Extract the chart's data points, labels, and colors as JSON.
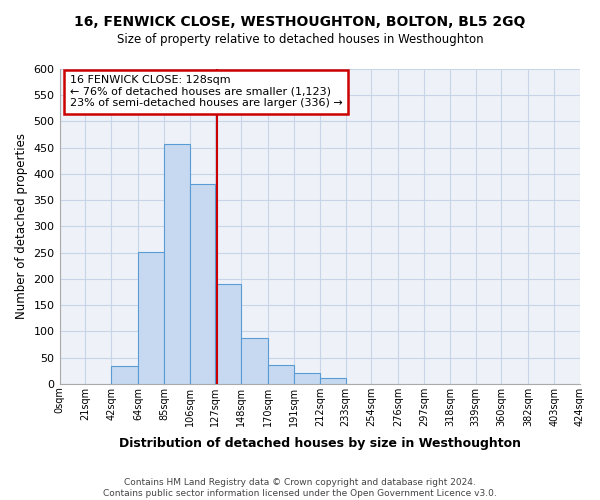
{
  "title": "16, FENWICK CLOSE, WESTHOUGHTON, BOLTON, BL5 2GQ",
  "subtitle": "Size of property relative to detached houses in Westhoughton",
  "xlabel": "Distribution of detached houses by size in Westhoughton",
  "ylabel": "Number of detached properties",
  "bar_edges": [
    0,
    21,
    42,
    64,
    85,
    106,
    127,
    148,
    170,
    191,
    212,
    233,
    254,
    276,
    297,
    318,
    339,
    360,
    382,
    403,
    424
  ],
  "bar_heights": [
    0,
    0,
    33,
    252,
    457,
    380,
    190,
    88,
    35,
    20,
    11,
    0,
    0,
    0,
    0,
    0,
    0,
    0,
    0,
    0
  ],
  "bar_color": "#c6d9f0",
  "bar_edgecolor": "#5b9bd5",
  "vline_x": 128,
  "vline_color": "#cc0000",
  "ylim": [
    0,
    600
  ],
  "yticks": [
    0,
    50,
    100,
    150,
    200,
    250,
    300,
    350,
    400,
    450,
    500,
    550,
    600
  ],
  "xtick_labels": [
    "0sqm",
    "21sqm",
    "42sqm",
    "64sqm",
    "85sqm",
    "106sqm",
    "127sqm",
    "148sqm",
    "170sqm",
    "191sqm",
    "212sqm",
    "233sqm",
    "254sqm",
    "276sqm",
    "297sqm",
    "318sqm",
    "339sqm",
    "360sqm",
    "382sqm",
    "403sqm",
    "424sqm"
  ],
  "annotation_title": "16 FENWICK CLOSE: 128sqm",
  "annotation_line1": "← 76% of detached houses are smaller (1,123)",
  "annotation_line2": "23% of semi-detached houses are larger (336) →",
  "annotation_box_color": "#ffffff",
  "annotation_border_color": "#cc0000",
  "footer_line1": "Contains HM Land Registry data © Crown copyright and database right 2024.",
  "footer_line2": "Contains public sector information licensed under the Open Government Licence v3.0.",
  "background_color": "#ffffff",
  "plot_bg_color": "#eef2f8",
  "grid_color": "#c8d4e8"
}
